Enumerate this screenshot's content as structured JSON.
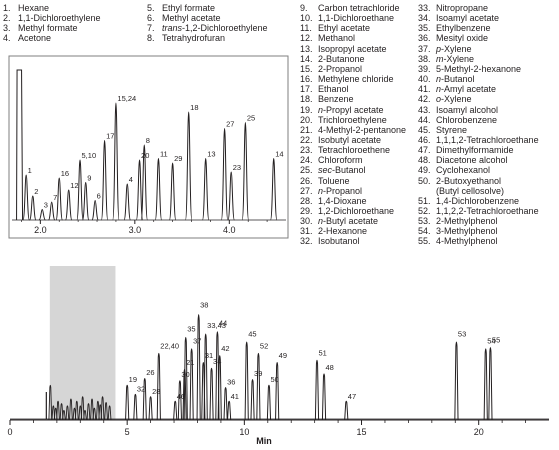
{
  "legend": [
    {
      "n": "1.",
      "name": "Hexane"
    },
    {
      "n": "2.",
      "name": "1,1-Dichloroethylene"
    },
    {
      "n": "3.",
      "name": "Methyl formate"
    },
    {
      "n": "4.",
      "name": "Acetone"
    },
    {
      "n": "5.",
      "name": "Ethyl formate"
    },
    {
      "n": "6.",
      "name": "Methyl acetate"
    },
    {
      "n": "7.",
      "name": "trans-1,2-Dichloroethylene"
    },
    {
      "n": "8.",
      "name": "Tetrahydrofuran"
    },
    {
      "n": "9.",
      "name": "Carbon tetrachloride"
    },
    {
      "n": "10.",
      "name": "1,1-Dichloroethane"
    },
    {
      "n": "11.",
      "name": "Ethyl acetate"
    },
    {
      "n": "12.",
      "name": "Methanol"
    },
    {
      "n": "13.",
      "name": "Isopropyl acetate"
    },
    {
      "n": "14.",
      "name": "2-Butanone"
    },
    {
      "n": "15.",
      "name": "2-Propanol"
    },
    {
      "n": "16.",
      "name": "Methylene chloride"
    },
    {
      "n": "17.",
      "name": "Ethanol"
    },
    {
      "n": "18.",
      "name": "Benzene"
    },
    {
      "n": "19.",
      "name": "n-Propyl acetate"
    },
    {
      "n": "20.",
      "name": "Trichloroethylene"
    },
    {
      "n": "21.",
      "name": "4-Methyl-2-pentanone"
    },
    {
      "n": "22.",
      "name": "Isobutyl acetate"
    },
    {
      "n": "23.",
      "name": "Tetrachloroethene"
    },
    {
      "n": "24.",
      "name": "Chloroform"
    },
    {
      "n": "25.",
      "name": "sec-Butanol"
    },
    {
      "n": "26.",
      "name": "Toluene"
    },
    {
      "n": "27.",
      "name": "n-Propanol"
    },
    {
      "n": "28.",
      "name": "1,4-Dioxane"
    },
    {
      "n": "29.",
      "name": "1,2-Dichloroethane"
    },
    {
      "n": "30.",
      "name": "n-Butyl acetate"
    },
    {
      "n": "31.",
      "name": "2-Hexanone"
    },
    {
      "n": "32.",
      "name": "Isobutanol"
    },
    {
      "n": "33.",
      "name": "Nitropropane"
    },
    {
      "n": "34.",
      "name": "Isoamyl acetate"
    },
    {
      "n": "35.",
      "name": "Ethylbenzene"
    },
    {
      "n": "36.",
      "name": "Mesityl oxide"
    },
    {
      "n": "37.",
      "name": "p-Xylene"
    },
    {
      "n": "38.",
      "name": "m-Xylene"
    },
    {
      "n": "39.",
      "name": "5-Methyl-2-hexanone"
    },
    {
      "n": "40.",
      "name": "n-Butanol"
    },
    {
      "n": "41.",
      "name": "n-Amyl acetate"
    },
    {
      "n": "42.",
      "name": "o-Xylene"
    },
    {
      "n": "43.",
      "name": "Isoamyl alcohol"
    },
    {
      "n": "44.",
      "name": "Chlorobenzene"
    },
    {
      "n": "45.",
      "name": "Styrene"
    },
    {
      "n": "46.",
      "name": "1,1,1,2-Tetrachloroethane"
    },
    {
      "n": "47.",
      "name": "Dimethylformamide"
    },
    {
      "n": "48.",
      "name": "Diacetone alcohol"
    },
    {
      "n": "49.",
      "name": "Cyclohexanol"
    },
    {
      "n": "50.",
      "name": "2-Butoxyethanol"
    },
    {
      "n": "",
      "name": "(Butyl cellosolve)"
    },
    {
      "n": "51.",
      "name": "1,4-Dichlorobenzene"
    },
    {
      "n": "52.",
      "name": "1,1,2,2-Tetrachloroethane"
    },
    {
      "n": "53.",
      "name": "2-Methylphenol"
    },
    {
      "n": "54.",
      "name": "3-Methylphenol"
    },
    {
      "n": "55.",
      "name": "4-Methylphenol"
    }
  ],
  "chart_data": [
    {
      "type": "line",
      "role": "main",
      "xlabel": "Min",
      "xlim": [
        0,
        23
      ],
      "xticks": [
        0,
        5,
        10,
        15,
        20
      ],
      "highlight_range": [
        1.7,
        4.5
      ],
      "dense_early_peaks": [
        {
          "t": 1.72,
          "h": 0.3
        },
        {
          "t": 1.85,
          "h": 0.12
        },
        {
          "t": 1.95,
          "h": 0.1
        },
        {
          "t": 2.05,
          "h": 0.16
        },
        {
          "t": 2.2,
          "h": 0.14
        },
        {
          "t": 2.3,
          "h": 0.08
        },
        {
          "t": 2.45,
          "h": 0.12
        },
        {
          "t": 2.6,
          "h": 0.18
        },
        {
          "t": 2.75,
          "h": 0.1
        },
        {
          "t": 2.85,
          "h": 0.16
        },
        {
          "t": 3.0,
          "h": 0.12
        },
        {
          "t": 3.1,
          "h": 0.2
        },
        {
          "t": 3.2,
          "h": 0.08
        },
        {
          "t": 3.35,
          "h": 0.14
        },
        {
          "t": 3.5,
          "h": 0.18
        },
        {
          "t": 3.6,
          "h": 0.1
        },
        {
          "t": 3.75,
          "h": 0.16
        },
        {
          "t": 3.85,
          "h": 0.13
        },
        {
          "t": 3.95,
          "h": 0.2
        },
        {
          "t": 4.1,
          "h": 0.15
        },
        {
          "t": 4.25,
          "h": 0.12
        }
      ],
      "labeled_peaks": [
        {
          "label": "19",
          "t": 5.0,
          "h": 0.3
        },
        {
          "label": "32",
          "t": 5.35,
          "h": 0.22
        },
        {
          "label": "26",
          "t": 5.75,
          "h": 0.36
        },
        {
          "label": "28",
          "t": 6.0,
          "h": 0.2
        },
        {
          "label": "22,40",
          "t": 6.35,
          "h": 0.58
        },
        {
          "label": "46",
          "t": 7.05,
          "h": 0.16
        },
        {
          "label": "30",
          "t": 7.25,
          "h": 0.34
        },
        {
          "label": "21",
          "t": 7.45,
          "h": 0.44
        },
        {
          "label": "35",
          "t": 7.5,
          "h": 0.72
        },
        {
          "label": "37",
          "t": 7.75,
          "h": 0.62
        },
        {
          "label": "38",
          "t": 8.05,
          "h": 0.92
        },
        {
          "label": "31",
          "t": 8.25,
          "h": 0.5
        },
        {
          "label": "33,43",
          "t": 8.35,
          "h": 0.75
        },
        {
          "label": "34",
          "t": 8.6,
          "h": 0.45
        },
        {
          "label": "44",
          "t": 8.85,
          "h": 0.77
        },
        {
          "label": "42",
          "t": 8.95,
          "h": 0.56
        },
        {
          "label": "36",
          "t": 9.2,
          "h": 0.28
        },
        {
          "label": "41",
          "t": 9.35,
          "h": 0.16
        },
        {
          "label": "45",
          "t": 10.1,
          "h": 0.68
        },
        {
          "label": "39",
          "t": 10.35,
          "h": 0.35
        },
        {
          "label": "52",
          "t": 10.6,
          "h": 0.58
        },
        {
          "label": "50",
          "t": 11.05,
          "h": 0.3
        },
        {
          "label": "49",
          "t": 11.4,
          "h": 0.5
        },
        {
          "label": "51",
          "t": 13.1,
          "h": 0.52
        },
        {
          "label": "48",
          "t": 13.4,
          "h": 0.4
        },
        {
          "label": "47",
          "t": 14.35,
          "h": 0.16
        },
        {
          "label": "53",
          "t": 19.05,
          "h": 0.68
        },
        {
          "label": "54",
          "t": 20.3,
          "h": 0.62
        },
        {
          "label": "55",
          "t": 20.5,
          "h": 0.63
        }
      ]
    },
    {
      "type": "line",
      "role": "inset",
      "xlim": [
        1.7,
        4.6
      ],
      "xticks": [
        2.0,
        3.0,
        4.0
      ],
      "xtick_labels": [
        "2.0",
        "3.0",
        "4.0"
      ],
      "solvent_peak": {
        "t": 1.78,
        "h": 1.0
      },
      "labeled_peaks": [
        {
          "label": "1",
          "t": 1.85,
          "h": 0.3
        },
        {
          "label": "2",
          "t": 1.92,
          "h": 0.16
        },
        {
          "label": "3",
          "t": 2.02,
          "h": 0.07
        },
        {
          "label": "7",
          "t": 2.12,
          "h": 0.12
        },
        {
          "label": "16",
          "t": 2.2,
          "h": 0.28
        },
        {
          "label": "12",
          "t": 2.3,
          "h": 0.2
        },
        {
          "label": "5,10",
          "t": 2.42,
          "h": 0.4
        },
        {
          "label": "9",
          "t": 2.48,
          "h": 0.25
        },
        {
          "label": "6",
          "t": 2.58,
          "h": 0.13
        },
        {
          "label": "17",
          "t": 2.68,
          "h": 0.53
        },
        {
          "label": "15,24",
          "t": 2.8,
          "h": 0.78
        },
        {
          "label": "4",
          "t": 2.92,
          "h": 0.24
        },
        {
          "label": "20",
          "t": 3.05,
          "h": 0.4
        },
        {
          "label": "8",
          "t": 3.1,
          "h": 0.5
        },
        {
          "label": "11",
          "t": 3.25,
          "h": 0.41
        },
        {
          "label": "29",
          "t": 3.4,
          "h": 0.38
        },
        {
          "label": "18",
          "t": 3.57,
          "h": 0.72
        },
        {
          "label": "13",
          "t": 3.75,
          "h": 0.41
        },
        {
          "label": "27",
          "t": 3.95,
          "h": 0.61
        },
        {
          "label": "23",
          "t": 4.02,
          "h": 0.32
        },
        {
          "label": "25",
          "t": 4.17,
          "h": 0.65
        },
        {
          "label": "14",
          "t": 4.47,
          "h": 0.41
        }
      ]
    }
  ]
}
